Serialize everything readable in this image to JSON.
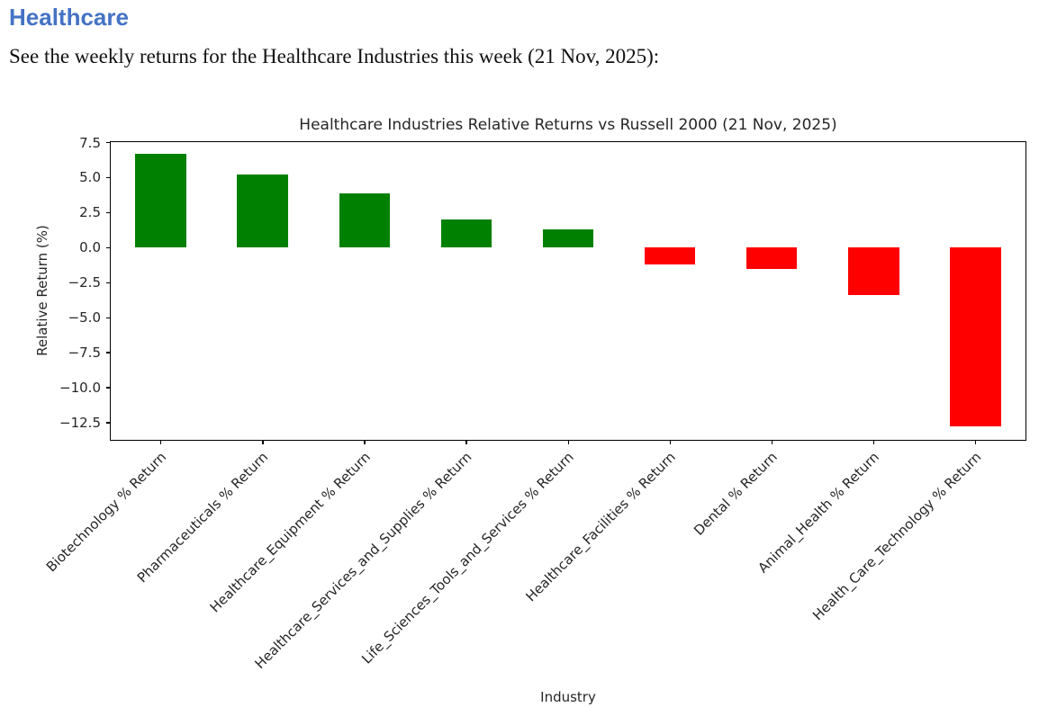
{
  "page": {
    "heading": "Healthcare",
    "subtitle": "See the weekly returns for the Healthcare Industries this week (21 Nov, 2025):"
  },
  "colors": {
    "heading_blue": "#4472c4",
    "positive_bar": "#008000",
    "negative_bar": "#ff0000",
    "axis_line": "#000000"
  },
  "chart_data": {
    "type": "bar",
    "title": "Healthcare Industries Relative Returns vs Russell 2000 (21 Nov, 2025)",
    "xlabel": "Industry",
    "ylabel": "Relative Return (%)",
    "categories": [
      "Biotechnology % Return",
      "Pharmaceuticals % Return",
      "Healthcare_Equipment % Return",
      "Healthcare_Services_and_Supplies % Return",
      "Life_Sciences_Tools_and_Services % Return",
      "Healthcare_Facilities % Return",
      "Dental % Return",
      "Animal_Health % Return",
      "Health_Care_Technology % Return"
    ],
    "values": [
      6.7,
      5.2,
      3.9,
      2.0,
      1.3,
      -1.2,
      -1.5,
      -3.4,
      -12.8
    ],
    "color_rule": "green if value >= 0 else red",
    "yticks": [
      7.5,
      5.0,
      2.5,
      0.0,
      -2.5,
      -5.0,
      -7.5,
      -10.0,
      -12.5
    ],
    "ylim": [
      -13.8,
      7.6
    ],
    "xtick_rotation_deg": 45,
    "grid": false,
    "legend": null
  }
}
